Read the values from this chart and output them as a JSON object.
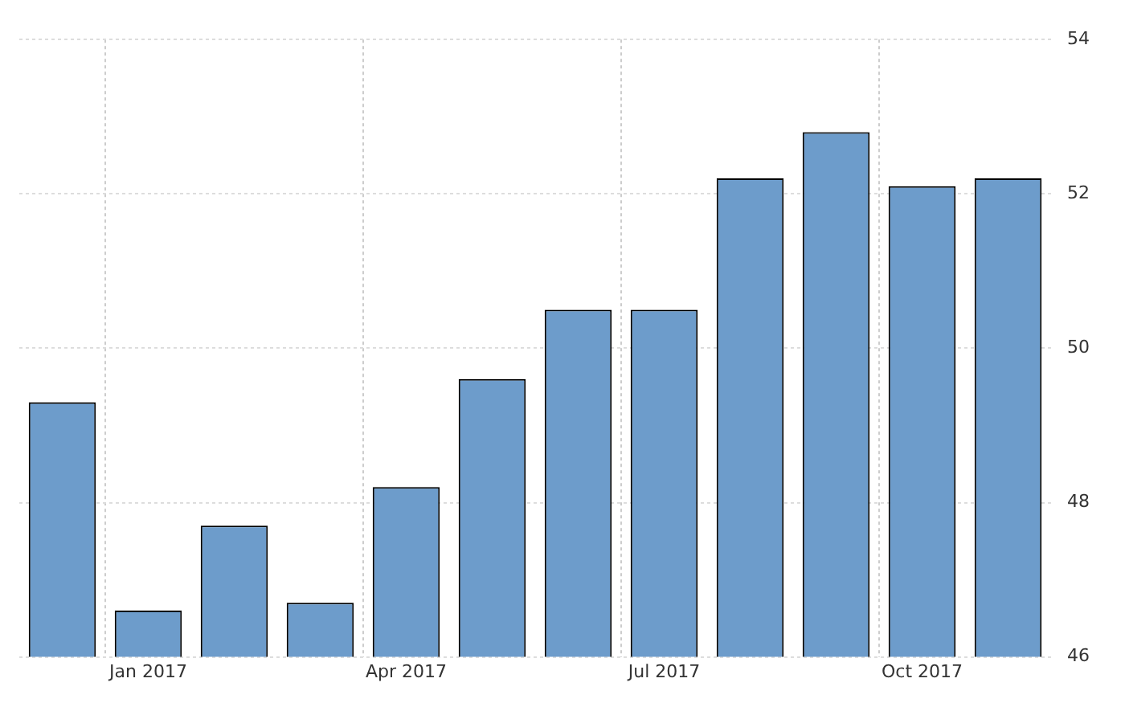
{
  "chart_data": {
    "type": "bar",
    "categories": [
      null,
      "Jan 2017",
      null,
      null,
      "Apr 2017",
      null,
      null,
      "Jul 2017",
      null,
      null,
      "Oct 2017",
      null
    ],
    "values": [
      49.3,
      46.6,
      47.7,
      46.7,
      48.2,
      49.6,
      50.5,
      50.5,
      52.2,
      52.8,
      52.1,
      52.2
    ],
    "color": "#6d9ccb",
    "ylim": [
      46,
      54
    ],
    "yticks": [
      46,
      48,
      50,
      52,
      54
    ],
    "grid": true
  }
}
